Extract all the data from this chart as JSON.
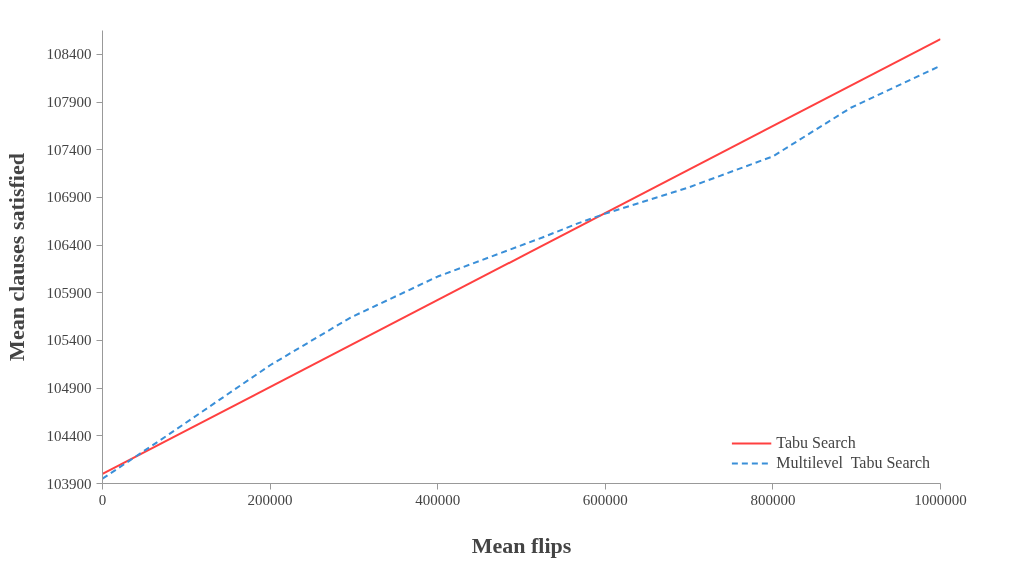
{
  "chart_data": {
    "type": "line",
    "xlabel": "Mean flips",
    "ylabel": "Mean clauses satisfied",
    "xlim": [
      0,
      1000000
    ],
    "xticks": [
      0,
      200000,
      400000,
      600000,
      800000,
      1000000
    ],
    "ylim": [
      103900,
      108650
    ],
    "yticks": [
      103900,
      104400,
      104900,
      105400,
      105900,
      106400,
      106900,
      107400,
      107900,
      108400
    ],
    "grid": false,
    "legend": "bottom right",
    "marker": "none",
    "series": [
      {
        "name": "Tabu Search",
        "color": "#ff4040",
        "line_style": "solid",
        "x": [
          0,
          1000000
        ],
        "values": [
          104000,
          108560
        ]
      },
      {
        "name": "Multilevel  Tabu Search",
        "color": "#3a8fd8",
        "line_style": "dashed",
        "x": [
          0,
          80000,
          200000,
          296000,
          400000,
          525000,
          568000,
          600000,
          698000,
          800000,
          893000,
          1000000
        ],
        "values": [
          103950,
          104420,
          105140,
          105640,
          106070,
          106480,
          106630,
          106730,
          107000,
          107330,
          107840,
          108280
        ]
      }
    ]
  }
}
